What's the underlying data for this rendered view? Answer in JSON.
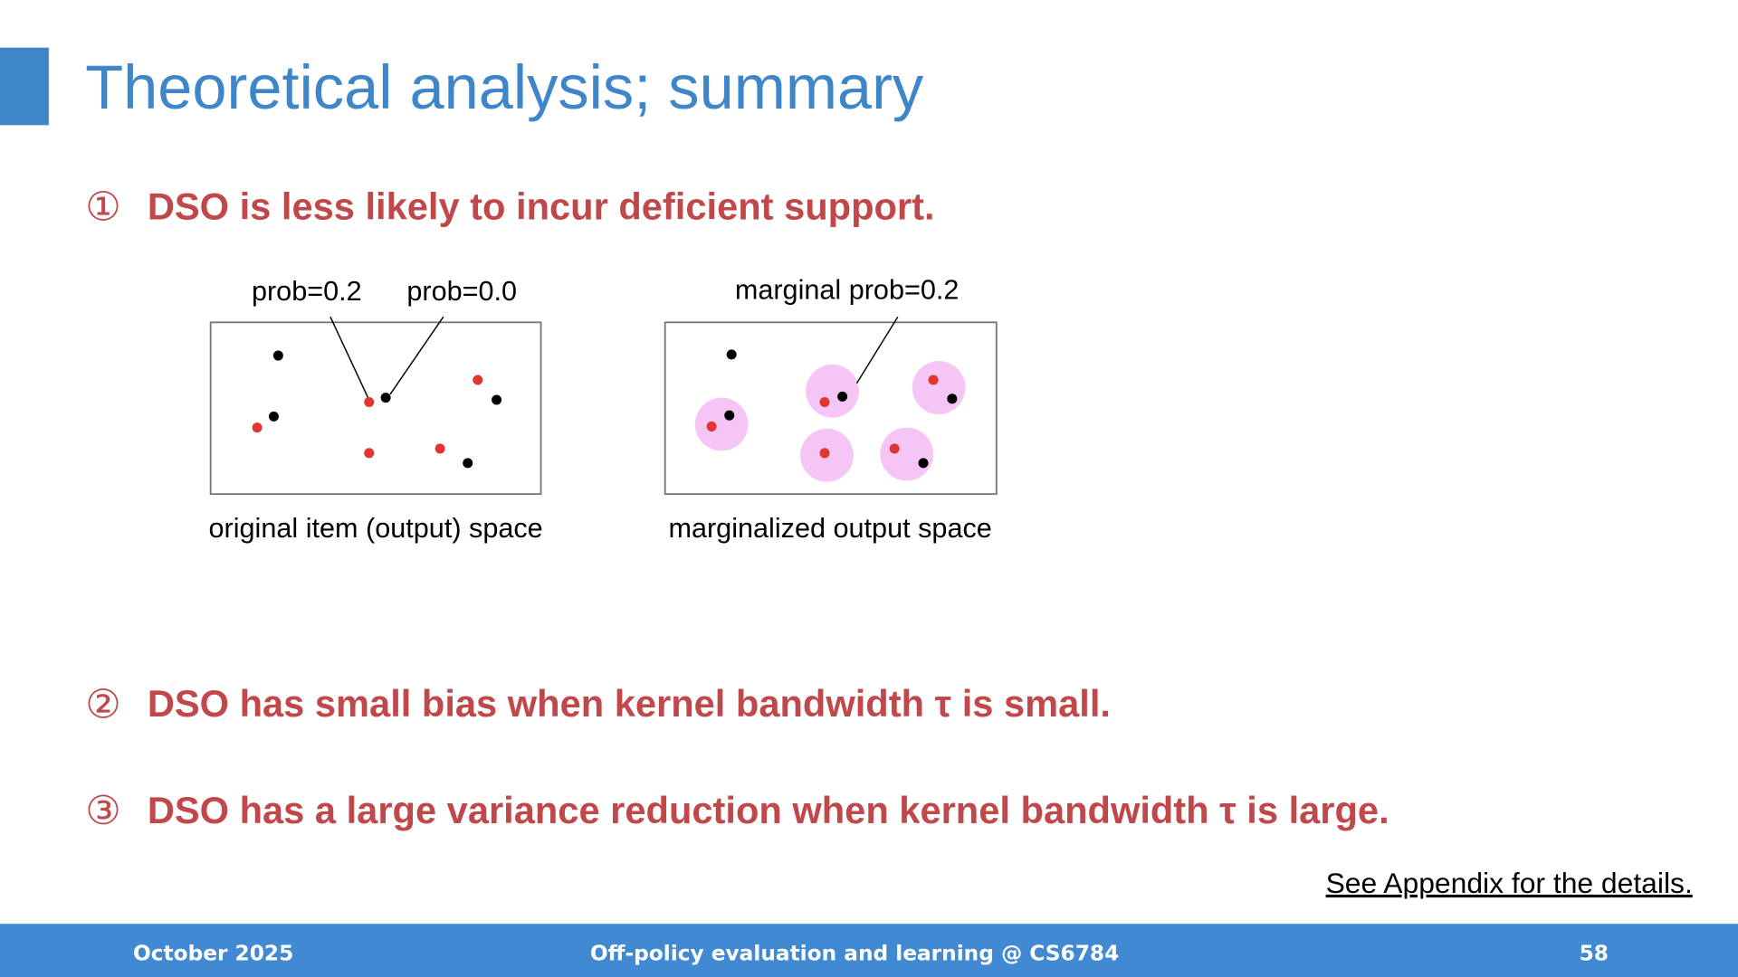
{
  "header": {
    "title": "Theoretical analysis; summary"
  },
  "points": [
    {
      "marker": "①",
      "text": "DSO is less likely to incur deficient support."
    },
    {
      "marker": "②",
      "text": "DSO has small bias when kernel bandwidth τ is small."
    },
    {
      "marker": "③",
      "text": "DSO has a large variance reduction when kernel bandwidth τ is large."
    }
  ],
  "diagram": {
    "left": {
      "labels": [
        "prob=0.2",
        "prob=0.0"
      ],
      "caption": "original item (output) space"
    },
    "right": {
      "label": "marginal prob=0.2",
      "caption": "marginalized output space"
    }
  },
  "note": "See Appendix for the details.",
  "footer": {
    "date": "October 2025",
    "course": "Off-policy evaluation and learning @ CS6784",
    "page": "58"
  }
}
